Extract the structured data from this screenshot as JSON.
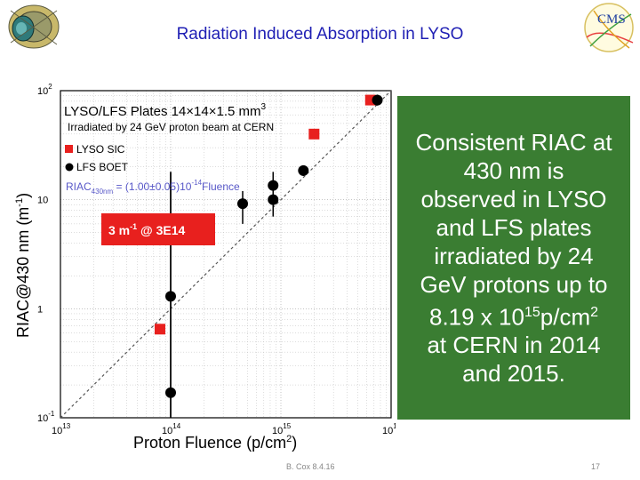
{
  "slide": {
    "title": "Radiation Induced Absorption in LYSO",
    "footer_author": "B. Cox 8.4.16",
    "page_number": "17"
  },
  "text_box": {
    "line1": "Consistent RIAC at",
    "line2": "430 nm is",
    "line3": "observed in LYSO",
    "line4": "and LFS plates",
    "line5": "irradiated by 24",
    "line6": "GeV protons up to",
    "line7a": "8.19 x 10",
    "line7sup": "15",
    "line7b": "p/cm",
    "line7sup2": "2",
    "line8": "at CERN in 2014",
    "line9": "and 2015."
  },
  "logos": {
    "left": "detector-logo",
    "right": "cms-logo",
    "right_text": "CMS"
  },
  "chart_data": {
    "type": "scatter",
    "title": "LYSO/LFS Plates 14×14×1.5 mm",
    "title_sup": "3",
    "subtitle": "Irradiated by 24 GeV proton beam at CERN",
    "xlabel": "Proton Fluence (p/cm",
    "xlabel_sup": "2",
    "xlabel_end": ")",
    "ylabel": "RIAC@430 nm (m",
    "ylabel_sup": "-1",
    "ylabel_end": ")",
    "xscale": "log",
    "yscale": "log",
    "xlim": [
      10000000000000.0,
      1e+16
    ],
    "ylim": [
      0.1,
      100
    ],
    "x_ticks": [
      {
        "value": 10000000000000.0,
        "base": "10",
        "exp": "13"
      },
      {
        "value": 100000000000000.0,
        "base": "10",
        "exp": "14"
      },
      {
        "value": 1000000000000000.0,
        "base": "10",
        "exp": "15"
      },
      {
        "value": 1e+16,
        "base": "10",
        "exp": "16"
      }
    ],
    "y_ticks": [
      {
        "value": 0.1,
        "base": "10",
        "exp": "-1"
      },
      {
        "value": 1,
        "base": "1",
        "exp": ""
      },
      {
        "value": 10,
        "base": "10",
        "exp": ""
      },
      {
        "value": 100,
        "base": "10",
        "exp": "2"
      }
    ],
    "grid": true,
    "legend_placement": "top-left",
    "series": [
      {
        "name": "LYSO SIC",
        "marker": "square",
        "color": "#e8201e",
        "points": [
          {
            "x": 80000000000000.0,
            "y": 0.65
          },
          {
            "x": 2000000000000000.0,
            "y": 40
          },
          {
            "x": 6500000000000000.0,
            "y": 82
          }
        ]
      },
      {
        "name": "LFS BOET",
        "marker": "circle",
        "color": "#000000",
        "points": [
          {
            "x": 100000000000000.0,
            "y": 0.17,
            "err_lo": 0.1,
            "err_hi": 18
          },
          {
            "x": 100000000000000.0,
            "y": 1.3,
            "err_lo": 0.1,
            "err_hi": 18
          },
          {
            "x": 450000000000000.0,
            "y": 9.2,
            "err_lo": 6.0,
            "err_hi": 12
          },
          {
            "x": 850000000000000.0,
            "y": 10.0,
            "err_lo": 7.0,
            "err_hi": 14
          },
          {
            "x": 850000000000000.0,
            "y": 13.5,
            "err_lo": 10,
            "err_hi": 18
          },
          {
            "x": 1600000000000000.0,
            "y": 18.5,
            "err_lo": 16.5,
            "err_hi": 20.5
          },
          {
            "x": 7500000000000000.0,
            "y": 82,
            "err_lo": 73,
            "err_hi": 92
          }
        ]
      }
    ],
    "fit": {
      "label_prefix": "RIAC",
      "label_sub": "430nm",
      "label_mid": " = (1.00±0.05)10",
      "label_exp": "-14",
      "label_end": "Fluence",
      "slope": 1e-14,
      "color": "#555555",
      "style": "dashed"
    },
    "annotation": {
      "text_a": "3 m",
      "text_sup": "-1",
      "text_b": " @ 3E14",
      "background": "#e8201e",
      "color": "#ffffff"
    }
  }
}
